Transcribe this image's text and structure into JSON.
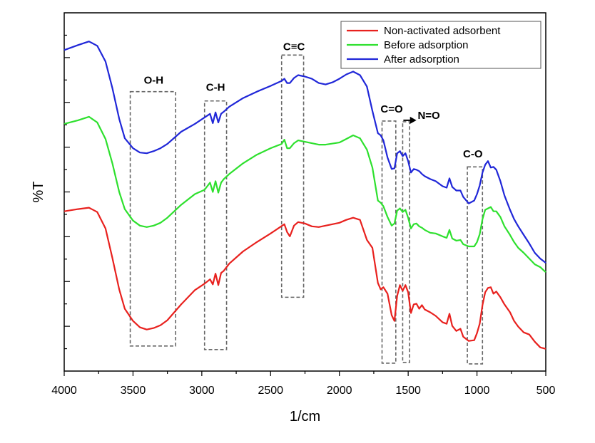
{
  "chart_data": {
    "type": "line",
    "title": "",
    "xlabel": "1/cm",
    "ylabel": "%T",
    "xlim": [
      4000,
      500
    ],
    "ylim": [
      0,
      100
    ],
    "x_ticks": [
      4000,
      3500,
      3000,
      2500,
      2000,
      1500,
      1000,
      500
    ],
    "x_tick_labels": [
      "4000",
      "3500",
      "3000",
      "2500",
      "2000",
      "1500",
      "1000",
      "500"
    ],
    "legend_position": "top-right",
    "series": [
      {
        "name": "Non-activated adsorbent",
        "color": "#e8211e",
        "points": [
          [
            4000,
            44.6
          ],
          [
            3900,
            45.2
          ],
          [
            3820,
            45.6
          ],
          [
            3760,
            44.4
          ],
          [
            3700,
            39.8
          ],
          [
            3650,
            31.6
          ],
          [
            3600,
            22.8
          ],
          [
            3560,
            17.4
          ],
          [
            3500,
            14.0
          ],
          [
            3450,
            12.2
          ],
          [
            3400,
            11.6
          ],
          [
            3350,
            12.0
          ],
          [
            3300,
            12.8
          ],
          [
            3250,
            14.2
          ],
          [
            3150,
            18.6
          ],
          [
            3050,
            22.6
          ],
          [
            2980,
            24.4
          ],
          [
            2940,
            25.6
          ],
          [
            2920,
            24.2
          ],
          [
            2900,
            27.2
          ],
          [
            2880,
            24.0
          ],
          [
            2860,
            27.4
          ],
          [
            2840,
            28.0
          ],
          [
            2800,
            30.0
          ],
          [
            2700,
            33.4
          ],
          [
            2600,
            36.0
          ],
          [
            2500,
            38.4
          ],
          [
            2400,
            41.0
          ],
          [
            2380,
            38.8
          ],
          [
            2360,
            37.6
          ],
          [
            2330,
            40.6
          ],
          [
            2300,
            41.6
          ],
          [
            2250,
            41.2
          ],
          [
            2200,
            40.4
          ],
          [
            2150,
            40.2
          ],
          [
            2100,
            40.6
          ],
          [
            2000,
            41.4
          ],
          [
            1950,
            42.2
          ],
          [
            1900,
            42.8
          ],
          [
            1850,
            42.2
          ],
          [
            1800,
            36.6
          ],
          [
            1760,
            34.4
          ],
          [
            1720,
            24.6
          ],
          [
            1700,
            22.8
          ],
          [
            1680,
            23.4
          ],
          [
            1650,
            21.6
          ],
          [
            1620,
            15.6
          ],
          [
            1600,
            14.0
          ],
          [
            1580,
            21.0
          ],
          [
            1560,
            24.0
          ],
          [
            1540,
            22.4
          ],
          [
            1520,
            24.0
          ],
          [
            1500,
            22.0
          ],
          [
            1480,
            16.2
          ],
          [
            1460,
            18.6
          ],
          [
            1440,
            18.8
          ],
          [
            1420,
            17.4
          ],
          [
            1400,
            18.4
          ],
          [
            1380,
            17.2
          ],
          [
            1340,
            16.4
          ],
          [
            1300,
            15.4
          ],
          [
            1250,
            13.6
          ],
          [
            1220,
            13.2
          ],
          [
            1200,
            16.0
          ],
          [
            1180,
            12.6
          ],
          [
            1150,
            11.2
          ],
          [
            1120,
            11.8
          ],
          [
            1100,
            9.6
          ],
          [
            1060,
            8.4
          ],
          [
            1020,
            8.6
          ],
          [
            1000,
            10.6
          ],
          [
            980,
            13.2
          ],
          [
            960,
            18.4
          ],
          [
            940,
            22.0
          ],
          [
            920,
            23.2
          ],
          [
            900,
            23.4
          ],
          [
            880,
            21.6
          ],
          [
            860,
            22.2
          ],
          [
            830,
            20.6
          ],
          [
            800,
            18.6
          ],
          [
            760,
            16.4
          ],
          [
            730,
            14.0
          ],
          [
            700,
            12.4
          ],
          [
            660,
            10.8
          ],
          [
            620,
            10.2
          ],
          [
            580,
            8.2
          ],
          [
            540,
            6.6
          ],
          [
            500,
            6.2
          ]
        ]
      },
      {
        "name": "Before adsorption",
        "color": "#2ee02e",
        "points": [
          [
            4000,
            69.0
          ],
          [
            3900,
            70.0
          ],
          [
            3820,
            71.0
          ],
          [
            3760,
            69.4
          ],
          [
            3700,
            64.8
          ],
          [
            3650,
            58.0
          ],
          [
            3600,
            50.0
          ],
          [
            3560,
            45.2
          ],
          [
            3500,
            42.0
          ],
          [
            3450,
            40.6
          ],
          [
            3400,
            40.2
          ],
          [
            3350,
            40.6
          ],
          [
            3300,
            41.4
          ],
          [
            3250,
            42.8
          ],
          [
            3150,
            46.4
          ],
          [
            3050,
            49.4
          ],
          [
            2980,
            50.6
          ],
          [
            2940,
            52.6
          ],
          [
            2920,
            50.0
          ],
          [
            2900,
            53.0
          ],
          [
            2880,
            49.8
          ],
          [
            2860,
            52.6
          ],
          [
            2840,
            53.6
          ],
          [
            2800,
            55.0
          ],
          [
            2700,
            58.0
          ],
          [
            2600,
            60.4
          ],
          [
            2500,
            62.2
          ],
          [
            2420,
            63.4
          ],
          [
            2400,
            64.6
          ],
          [
            2380,
            62.2
          ],
          [
            2360,
            62.2
          ],
          [
            2330,
            63.6
          ],
          [
            2300,
            64.4
          ],
          [
            2250,
            64.0
          ],
          [
            2200,
            63.6
          ],
          [
            2150,
            63.2
          ],
          [
            2100,
            63.2
          ],
          [
            2000,
            63.8
          ],
          [
            1950,
            64.8
          ],
          [
            1900,
            65.8
          ],
          [
            1850,
            65.0
          ],
          [
            1800,
            61.8
          ],
          [
            1760,
            56.8
          ],
          [
            1720,
            47.6
          ],
          [
            1700,
            47.0
          ],
          [
            1680,
            46.0
          ],
          [
            1650,
            43.0
          ],
          [
            1620,
            40.6
          ],
          [
            1600,
            41.2
          ],
          [
            1580,
            44.8
          ],
          [
            1560,
            45.4
          ],
          [
            1540,
            44.4
          ],
          [
            1520,
            45.0
          ],
          [
            1500,
            42.8
          ],
          [
            1480,
            39.8
          ],
          [
            1460,
            41.0
          ],
          [
            1440,
            41.2
          ],
          [
            1420,
            40.4
          ],
          [
            1400,
            40.0
          ],
          [
            1380,
            39.4
          ],
          [
            1340,
            38.6
          ],
          [
            1300,
            38.4
          ],
          [
            1250,
            37.6
          ],
          [
            1220,
            37.2
          ],
          [
            1200,
            39.4
          ],
          [
            1180,
            37.0
          ],
          [
            1150,
            36.4
          ],
          [
            1120,
            36.6
          ],
          [
            1100,
            35.4
          ],
          [
            1060,
            34.8
          ],
          [
            1020,
            34.8
          ],
          [
            1000,
            36.0
          ],
          [
            980,
            38.2
          ],
          [
            960,
            42.4
          ],
          [
            940,
            45.0
          ],
          [
            920,
            45.4
          ],
          [
            900,
            45.8
          ],
          [
            880,
            44.6
          ],
          [
            860,
            44.6
          ],
          [
            830,
            43.0
          ],
          [
            800,
            40.4
          ],
          [
            760,
            38.0
          ],
          [
            730,
            36.0
          ],
          [
            700,
            34.4
          ],
          [
            660,
            33.0
          ],
          [
            620,
            31.4
          ],
          [
            580,
            29.8
          ],
          [
            540,
            29.0
          ],
          [
            500,
            27.6
          ]
        ]
      },
      {
        "name": "After adsorption",
        "color": "#2027d8",
        "points": [
          [
            4000,
            89.6
          ],
          [
            3900,
            91.0
          ],
          [
            3820,
            92.0
          ],
          [
            3760,
            90.8
          ],
          [
            3700,
            86.4
          ],
          [
            3650,
            79.0
          ],
          [
            3600,
            70.4
          ],
          [
            3560,
            65.0
          ],
          [
            3500,
            62.2
          ],
          [
            3450,
            61.0
          ],
          [
            3400,
            60.8
          ],
          [
            3350,
            61.4
          ],
          [
            3300,
            62.2
          ],
          [
            3250,
            63.4
          ],
          [
            3150,
            66.8
          ],
          [
            3050,
            69.0
          ],
          [
            2980,
            70.8
          ],
          [
            2940,
            71.8
          ],
          [
            2920,
            69.2
          ],
          [
            2900,
            72.2
          ],
          [
            2880,
            69.4
          ],
          [
            2860,
            71.8
          ],
          [
            2840,
            72.4
          ],
          [
            2800,
            73.8
          ],
          [
            2700,
            76.2
          ],
          [
            2600,
            78.0
          ],
          [
            2500,
            79.6
          ],
          [
            2420,
            81.0
          ],
          [
            2400,
            81.6
          ],
          [
            2380,
            80.4
          ],
          [
            2360,
            80.4
          ],
          [
            2330,
            81.8
          ],
          [
            2300,
            82.6
          ],
          [
            2250,
            82.2
          ],
          [
            2200,
            81.6
          ],
          [
            2150,
            80.4
          ],
          [
            2100,
            80.0
          ],
          [
            2050,
            80.6
          ],
          [
            2000,
            81.6
          ],
          [
            1950,
            82.8
          ],
          [
            1900,
            83.6
          ],
          [
            1850,
            82.6
          ],
          [
            1800,
            79.4
          ],
          [
            1760,
            72.6
          ],
          [
            1720,
            66.4
          ],
          [
            1700,
            65.8
          ],
          [
            1680,
            64.4
          ],
          [
            1650,
            59.6
          ],
          [
            1620,
            56.4
          ],
          [
            1600,
            56.6
          ],
          [
            1580,
            60.8
          ],
          [
            1560,
            61.4
          ],
          [
            1540,
            60.0
          ],
          [
            1520,
            60.8
          ],
          [
            1500,
            58.6
          ],
          [
            1480,
            55.4
          ],
          [
            1460,
            56.4
          ],
          [
            1440,
            56.2
          ],
          [
            1420,
            55.8
          ],
          [
            1400,
            55.0
          ],
          [
            1380,
            54.4
          ],
          [
            1340,
            53.6
          ],
          [
            1300,
            53.0
          ],
          [
            1250,
            51.6
          ],
          [
            1220,
            51.2
          ],
          [
            1200,
            53.8
          ],
          [
            1180,
            51.4
          ],
          [
            1150,
            50.4
          ],
          [
            1120,
            50.4
          ],
          [
            1100,
            48.6
          ],
          [
            1060,
            46.8
          ],
          [
            1020,
            47.6
          ],
          [
            1000,
            49.4
          ],
          [
            980,
            51.8
          ],
          [
            960,
            55.4
          ],
          [
            940,
            57.6
          ],
          [
            920,
            58.6
          ],
          [
            900,
            56.8
          ],
          [
            880,
            57.0
          ],
          [
            860,
            56.2
          ],
          [
            830,
            53.0
          ],
          [
            800,
            49.0
          ],
          [
            760,
            45.0
          ],
          [
            730,
            42.4
          ],
          [
            700,
            40.4
          ],
          [
            660,
            38.0
          ],
          [
            620,
            35.6
          ],
          [
            580,
            33.0
          ],
          [
            540,
            31.4
          ],
          [
            500,
            30.2
          ]
        ]
      }
    ],
    "annotations": [
      {
        "label": "O-H",
        "x_range": [
          3520,
          3190
        ],
        "y_range": [
          7,
          78
        ],
        "label_x": 3350,
        "label_y": 80.2
      },
      {
        "label": "C-H",
        "x_range": [
          2980,
          2820
        ],
        "y_range": [
          6,
          75.4
        ],
        "label_x": 2900,
        "label_y": 78.2
      },
      {
        "label": "C≡C",
        "x_range": [
          2420,
          2260
        ],
        "y_range": [
          20.6,
          88.2
        ],
        "label_x": 2330,
        "label_y": 89.6
      },
      {
        "label": "C=O",
        "x_range": [
          1690,
          1590
        ],
        "y_range": [
          2.2,
          69.8
        ],
        "label_x": 1620,
        "label_y": 72.2
      },
      {
        "label": "N=O",
        "x_range": [
          1540,
          1490
        ],
        "y_range": [
          2.4,
          69.6
        ],
        "label_x": 1350,
        "label_y": 70.4,
        "arrow_from_x": 1535,
        "arrow_to_x": 1440,
        "arrow_y": 70.0
      },
      {
        "label": "C-O",
        "x_range": [
          1070,
          960
        ],
        "y_range": [
          2.0,
          57.0
        ],
        "label_x": 1030,
        "label_y": 59.6
      }
    ],
    "grid": false
  }
}
